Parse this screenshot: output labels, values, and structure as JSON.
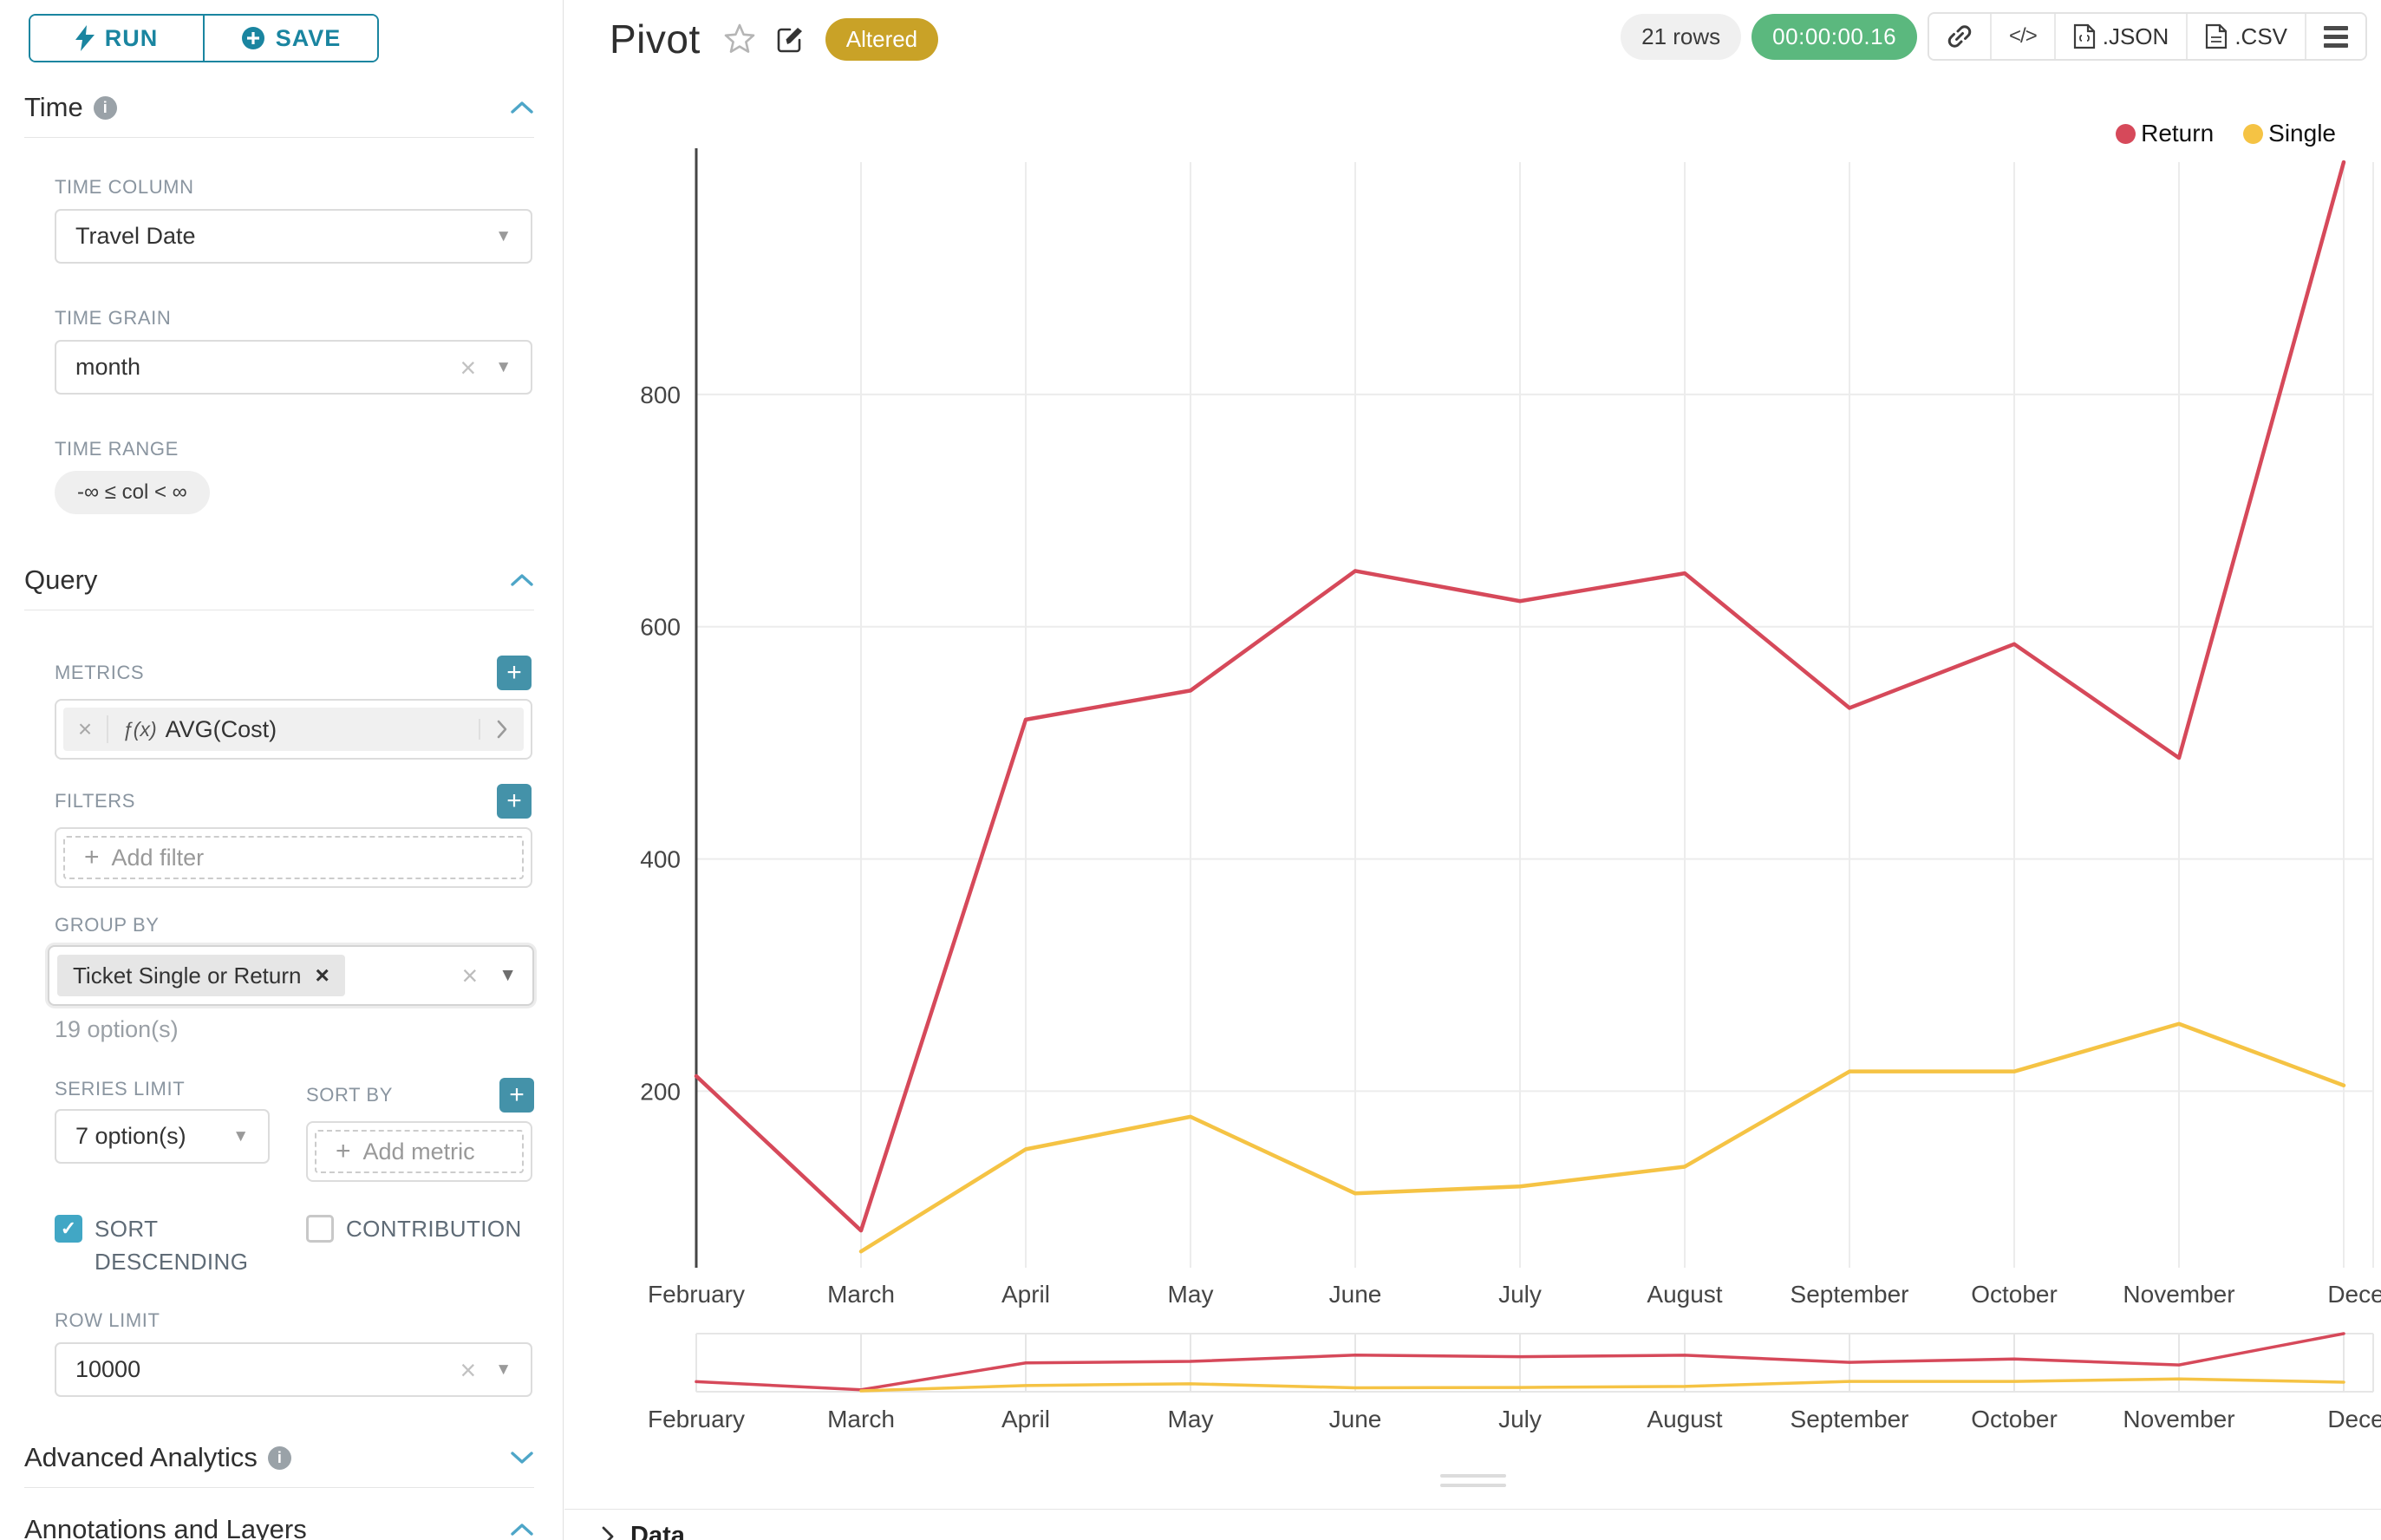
{
  "sidebar": {
    "run_label": "RUN",
    "save_label": "SAVE",
    "time_title": "Time",
    "time_column_label": "TIME COLUMN",
    "time_column_value": "Travel Date",
    "time_grain_label": "TIME GRAIN",
    "time_grain_value": "month",
    "time_range_label": "TIME RANGE",
    "time_range_value": "-∞ ≤ col < ∞",
    "query_title": "Query",
    "metrics_label": "METRICS",
    "metric_fx": "ƒ(x)",
    "metric_value": "AVG(Cost)",
    "filters_label": "FILTERS",
    "add_filter_label": "Add filter",
    "group_by_label": "GROUP BY",
    "group_by_tag": "Ticket Single or Return",
    "group_by_hint": "19 option(s)",
    "series_limit_label": "SERIES LIMIT",
    "series_limit_value": "7 option(s)",
    "sort_by_label": "SORT BY",
    "add_metric_label": "Add metric",
    "sort_descending_label": "SORT DESCENDING",
    "contribution_label": "CONTRIBUTION",
    "row_limit_label": "ROW LIMIT",
    "row_limit_value": "10000",
    "advanced_title": "Advanced Analytics",
    "annotations_title": "Annotations and Layers"
  },
  "header": {
    "title": "Pivot",
    "altered_badge": "Altered",
    "rows_badge": "21 rows",
    "timer": "00:00:00.16",
    "json_label": ".JSON",
    "csv_label": ".CSV"
  },
  "data_panel": {
    "title": "Data"
  },
  "icons": {
    "caret_down": "▼",
    "clear": "×",
    "plus": "+",
    "info": "i",
    "check": "✓",
    "code": "</>"
  },
  "colors": {
    "primary_teal": "#1A85A0",
    "plus_button_teal": "#4492A9",
    "checkbox_teal": "#41A7C5",
    "altered_badge_gold": "#C9A227",
    "timer_green": "#5BB87E",
    "return_red": "#D6495A",
    "single_yellow": "#F5C344"
  },
  "chart_data": {
    "type": "line",
    "title": "",
    "xlabel": "",
    "ylabel": "",
    "categories": [
      "February",
      "March",
      "April",
      "May",
      "June",
      "July",
      "August",
      "September",
      "October",
      "November",
      "December"
    ],
    "x_tick_labels": [
      "February",
      "March",
      "April",
      "May",
      "June",
      "July",
      "August",
      "September",
      "October",
      "November",
      "Dece"
    ],
    "series": [
      {
        "name": "Return",
        "color": "#D6495A",
        "values": [
          213,
          80,
          520,
          545,
          648,
          622,
          646,
          530,
          585,
          487,
          1000
        ]
      },
      {
        "name": "Single",
        "color": "#F5C344",
        "values": [
          null,
          62,
          150,
          178,
          112,
          118,
          135,
          217,
          217,
          258,
          205
        ]
      }
    ],
    "yticks": [
      200,
      400,
      600,
      800
    ],
    "ylim": [
      48,
      1000
    ],
    "grid": true,
    "legend_position": "top-right",
    "has_range_selector": true
  }
}
